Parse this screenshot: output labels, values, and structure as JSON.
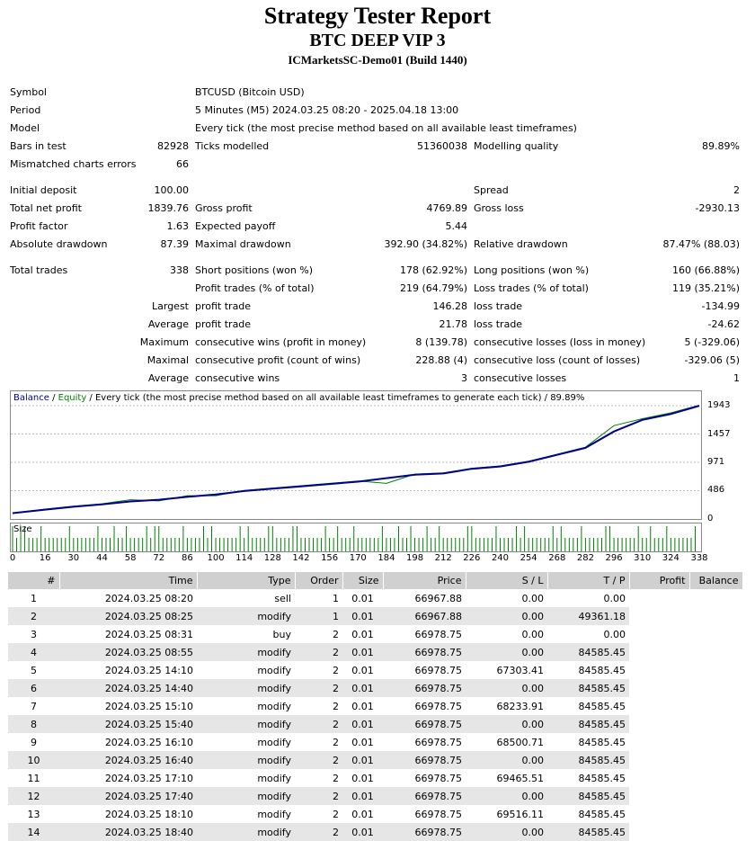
{
  "header": {
    "title": "Strategy Tester Report",
    "subtitle": "BTC DEEP VIP 3",
    "server": "ICMarketsSC-Demo01 (Build 1440)"
  },
  "summary": {
    "symbol_label": "Symbol",
    "symbol": "BTCUSD (Bitcoin USD)",
    "period_label": "Period",
    "period": "5 Minutes (M5) 2024.03.25 08:20 - 2025.04.18 13:00",
    "model_label": "Model",
    "model": "Every tick (the most precise method based on all available least timeframes)",
    "bars_label": "Bars in test",
    "bars": "82928",
    "ticks_label": "Ticks modelled",
    "ticks": "51360038",
    "quality_label": "Modelling quality",
    "quality": "89.89%",
    "mismatch_label": "Mismatched charts errors",
    "mismatch": "66",
    "deposit_label": "Initial deposit",
    "deposit": "100.00",
    "spread_label": "Spread",
    "spread": "2",
    "net_label": "Total net profit",
    "net": "1839.76",
    "gross_profit_label": "Gross profit",
    "gross_profit": "4769.89",
    "gross_loss_label": "Gross loss",
    "gross_loss": "-2930.13",
    "pf_label": "Profit factor",
    "pf": "1.63",
    "payoff_label": "Expected payoff",
    "payoff": "5.44",
    "abs_dd_label": "Absolute drawdown",
    "abs_dd": "87.39",
    "max_dd_label": "Maximal drawdown",
    "max_dd": "392.90 (34.82%)",
    "rel_dd_label": "Relative drawdown",
    "rel_dd": "87.47% (88.03)",
    "trades_label": "Total trades",
    "trades": "338",
    "short_label": "Short positions (won %)",
    "short": "178 (62.92%)",
    "long_label": "Long positions (won %)",
    "long": "160 (66.88%)",
    "profit_trades_label": "Profit trades (% of total)",
    "profit_trades": "219 (64.79%)",
    "loss_trades_label": "Loss trades (% of total)",
    "loss_trades": "119 (35.21%)",
    "largest_label": "Largest",
    "average_label": "Average",
    "maximum_label": "Maximum",
    "maximal_label": "Maximal",
    "average2_label": "Average",
    "lpt_label": "profit trade",
    "lpt": "146.28",
    "llt_label": "loss trade",
    "llt": "-134.99",
    "apt_label": "profit trade",
    "apt": "21.78",
    "alt_label": "loss trade",
    "alt": "-24.62",
    "mcw_label": "consecutive wins (profit in money)",
    "mcw": "8 (139.78)",
    "mcl_label": "consecutive losses (loss in money)",
    "mcl": "5 (-329.06)",
    "mcp_label": "consecutive profit (count of wins)",
    "mcp": "228.88 (4)",
    "mcll_label": "consecutive loss (count of losses)",
    "mcll": "-329.06 (5)",
    "acw_label": "consecutive wins",
    "acw": "3",
    "acl_label": "consecutive losses",
    "acl": "1"
  },
  "chart": {
    "legend_balance": "Balance",
    "legend_sep1": " / ",
    "legend_equity": "Equity",
    "legend_rest": " / Every tick (the most precise method based on all available least timeframes to generate each tick) / 89.89%",
    "balance_color": "#00008b",
    "equity_color": "#008000",
    "size_label": "Size",
    "y_ticks": [
      "1943",
      "1457",
      "971",
      "486",
      "0"
    ],
    "x_ticks": [
      "0",
      "16",
      "30",
      "44",
      "58",
      "72",
      "86",
      "100",
      "114",
      "128",
      "142",
      "156",
      "170",
      "184",
      "198",
      "212",
      "226",
      "240",
      "254",
      "268",
      "282",
      "296",
      "310",
      "324",
      "338"
    ]
  },
  "chart_data": {
    "type": "line",
    "title": "",
    "x": [
      0,
      16,
      30,
      44,
      58,
      72,
      86,
      100,
      114,
      128,
      142,
      156,
      170,
      184,
      198,
      212,
      226,
      240,
      254,
      268,
      282,
      296,
      310,
      324,
      338
    ],
    "series": [
      {
        "name": "Balance",
        "values": [
          100,
          160,
          210,
          250,
          300,
          330,
          380,
          420,
          480,
          520,
          560,
          600,
          640,
          700,
          760,
          780,
          860,
          900,
          980,
          1100,
          1220,
          1500,
          1700,
          1800,
          1940
        ]
      },
      {
        "name": "Equity",
        "values": [
          100,
          170,
          220,
          260,
          330,
          310,
          400,
          400,
          490,
          530,
          570,
          610,
          650,
          610,
          770,
          790,
          870,
          910,
          990,
          1110,
          1230,
          1600,
          1720,
          1820,
          1950
        ]
      }
    ],
    "ylim": [
      0,
      1943
    ],
    "xlabel": "",
    "ylabel": ""
  },
  "table": {
    "headers": [
      "#",
      "Time",
      "Type",
      "Order",
      "Size",
      "Price",
      "S / L",
      "T / P",
      "Profit",
      "Balance"
    ],
    "rows": [
      [
        "1",
        "2024.03.25 08:20",
        "sell",
        "1",
        "0.01",
        "66967.88",
        "0.00",
        "0.00"
      ],
      [
        "2",
        "2024.03.25 08:25",
        "modify",
        "1",
        "0.01",
        "66967.88",
        "0.00",
        "49361.18"
      ],
      [
        "3",
        "2024.03.25 08:31",
        "buy",
        "2",
        "0.01",
        "66978.75",
        "0.00",
        "0.00"
      ],
      [
        "4",
        "2024.03.25 08:55",
        "modify",
        "2",
        "0.01",
        "66978.75",
        "0.00",
        "84585.45"
      ],
      [
        "5",
        "2024.03.25 14:10",
        "modify",
        "2",
        "0.01",
        "66978.75",
        "67303.41",
        "84585.45"
      ],
      [
        "6",
        "2024.03.25 14:40",
        "modify",
        "2",
        "0.01",
        "66978.75",
        "0.00",
        "84585.45"
      ],
      [
        "7",
        "2024.03.25 15:10",
        "modify",
        "2",
        "0.01",
        "66978.75",
        "68233.91",
        "84585.45"
      ],
      [
        "8",
        "2024.03.25 15:40",
        "modify",
        "2",
        "0.01",
        "66978.75",
        "0.00",
        "84585.45"
      ],
      [
        "9",
        "2024.03.25 16:10",
        "modify",
        "2",
        "0.01",
        "66978.75",
        "68500.71",
        "84585.45"
      ],
      [
        "10",
        "2024.03.25 16:40",
        "modify",
        "2",
        "0.01",
        "66978.75",
        "0.00",
        "84585.45"
      ],
      [
        "11",
        "2024.03.25 17:10",
        "modify",
        "2",
        "0.01",
        "66978.75",
        "69465.51",
        "84585.45"
      ],
      [
        "12",
        "2024.03.25 17:40",
        "modify",
        "2",
        "0.01",
        "66978.75",
        "0.00",
        "84585.45"
      ],
      [
        "13",
        "2024.03.25 18:10",
        "modify",
        "2",
        "0.01",
        "66978.75",
        "69516.11",
        "84585.45"
      ],
      [
        "14",
        "2024.03.25 18:40",
        "modify",
        "2",
        "0.01",
        "66978.75",
        "0.00",
        "84585.45"
      ]
    ]
  }
}
